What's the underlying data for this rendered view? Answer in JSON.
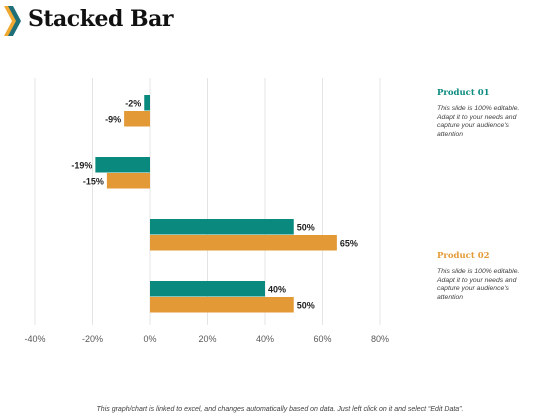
{
  "slide": {
    "title": "Stacked Bar"
  },
  "chart_data": {
    "type": "bar",
    "orientation": "horizontal",
    "categories": [
      "",
      "",
      "",
      ""
    ],
    "series": [
      {
        "name": "Product 01",
        "color": "#0a8a7e",
        "values": [
          -2,
          -19,
          50,
          40
        ]
      },
      {
        "name": "Product 02",
        "color": "#e39a36",
        "values": [
          -9,
          -15,
          65,
          50
        ]
      }
    ],
    "xlim": [
      -40,
      80
    ],
    "xticks": [
      -40,
      -20,
      0,
      20,
      40,
      60,
      80
    ],
    "tick_labels": [
      "-40%",
      "-20%",
      "0%",
      "20%",
      "40%",
      "60%",
      "80%"
    ],
    "data_labels": [
      [
        "-2%",
        "-19%",
        "50%",
        "40%"
      ],
      [
        "-9%",
        "-15%",
        "65%",
        "50%"
      ]
    ],
    "grid": true,
    "legend": "right"
  },
  "side_notes": [
    {
      "heading": "Product 01",
      "color": "#0a8a7e",
      "lines": [
        "This slide is 100% editable.",
        "Adapt it to your needs and",
        "capture your audience's",
        "attention"
      ]
    },
    {
      "heading": "Product 02",
      "color": "#e39a36",
      "lines": [
        "This slide is 100% editable.",
        "Adapt it to your needs and",
        "capture your audience's",
        "attention"
      ]
    }
  ],
  "footer": {
    "text": "This graph/chart is linked to excel, and changes automatically based on data. Just left click on it and select “Edit Data”."
  },
  "colors": {
    "accent": "#0a8a7e",
    "secondary": "#e39a36",
    "chevron_back": "#f0a830",
    "chevron_front": "#1e6f78"
  }
}
